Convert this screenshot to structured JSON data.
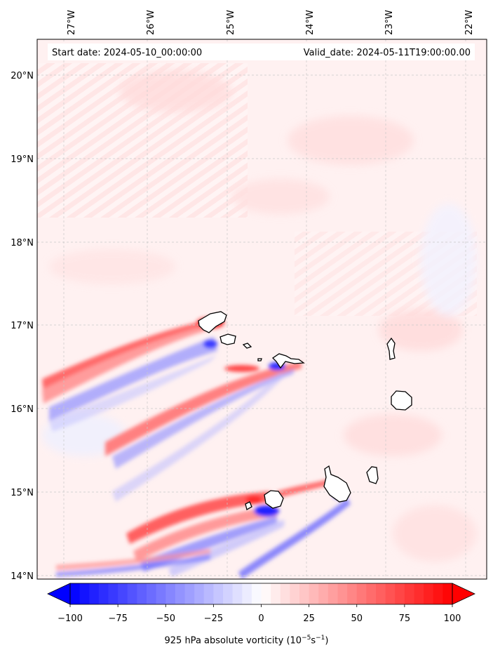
{
  "header": {
    "start_date": "Start date: 2024-05-10_00:00:00",
    "valid_date": "Valid_date: 2024-05-11T19:00:00.00"
  },
  "lon_labels": [
    "27°W",
    "26°W",
    "25°W",
    "24°W",
    "23°W",
    "22°W"
  ],
  "lat_labels": [
    "20°N",
    "19°N",
    "18°N",
    "17°N",
    "16°N",
    "15°N",
    "14°N"
  ],
  "colorbar": {
    "label_text": "925 hPa absolute vorticity (10",
    "exp1": "−5",
    "mid": "s",
    "exp2": "−1",
    "close": ")",
    "ticks": [
      "−100",
      "−75",
      "−50",
      "−25",
      "0",
      "25",
      "50",
      "75",
      "100"
    ],
    "min": -100,
    "max": 100,
    "colors": {
      "negative": "#0000ff",
      "zero": "#ffffff",
      "positive": "#ff0000"
    }
  },
  "map": {
    "lon_range": [
      -27.3,
      -21.9
    ],
    "lat_range": [
      13.95,
      20.45
    ],
    "islands": [
      "Santo Antão",
      "São Vicente",
      "Santa Luzia",
      "São Nicolau",
      "Sal",
      "Boa Vista",
      "Santiago",
      "Maio",
      "Fogo",
      "Brava"
    ]
  }
}
